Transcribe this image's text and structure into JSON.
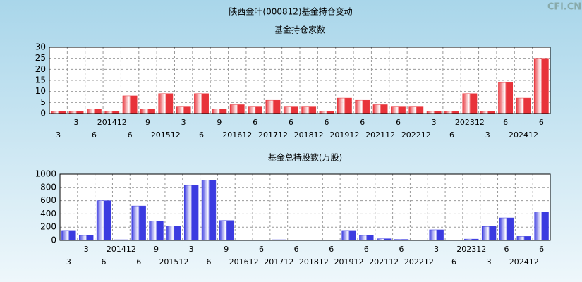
{
  "title": "陕西金叶(000812)基金持仓变动",
  "watermark": "CFi.CN",
  "chart_data": [
    {
      "type": "bar",
      "title": "基金持仓家数",
      "color": "#e8333a",
      "categories": [
        "3",
        "3",
        "6",
        "201412",
        "6",
        "9",
        "201512",
        "3",
        "6",
        "9",
        "201612",
        "6",
        "201712",
        "6",
        "201812",
        "6",
        "201912",
        "6",
        "202112",
        "6",
        "202212",
        "3",
        "6",
        "202312",
        "3",
        "6",
        "202412",
        "6"
      ],
      "values": [
        1,
        1,
        2,
        1,
        8,
        2,
        9,
        3,
        9,
        2,
        4,
        3,
        6,
        3,
        3,
        1,
        7,
        6,
        4,
        3,
        3,
        1,
        1,
        9,
        1,
        14,
        7,
        25
      ],
      "ylim": [
        0,
        30
      ],
      "yticks": [
        0,
        5,
        10,
        15,
        20,
        25,
        30
      ],
      "grid": true
    },
    {
      "type": "bar",
      "title": "基金总持股数(万股)",
      "color": "#3b3be0",
      "categories": [
        "3",
        "3",
        "6",
        "201412",
        "6",
        "9",
        "201512",
        "3",
        "6",
        "9",
        "201612",
        "6",
        "201712",
        "6",
        "201812",
        "6",
        "201912",
        "6",
        "202112",
        "6",
        "202212",
        "3",
        "6",
        "202312",
        "3",
        "6",
        "202412",
        "6"
      ],
      "values": [
        150,
        75,
        600,
        10,
        520,
        290,
        220,
        830,
        910,
        300,
        5,
        5,
        10,
        5,
        5,
        5,
        150,
        75,
        25,
        15,
        5,
        160,
        5,
        20,
        210,
        340,
        60,
        430
      ],
      "ylim": [
        0,
        1000
      ],
      "yticks": [
        0,
        200,
        400,
        600,
        800,
        1000
      ],
      "grid": true
    }
  ]
}
